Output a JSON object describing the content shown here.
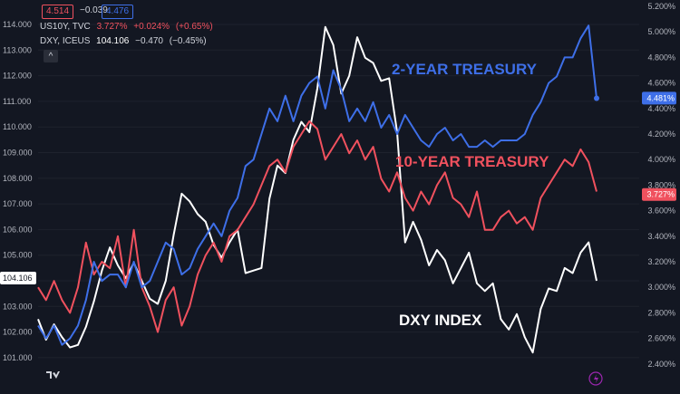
{
  "header": {
    "box1": "4.514",
    "change": "−0.039",
    "box2": "4.476",
    "row1": {
      "symbol": "US10Y, TVC",
      "value": "3.727%",
      "change": "+0.024%",
      "pct": "(+0.65%)"
    },
    "row2": {
      "symbol": "DXY, ICEUS",
      "value": "104.106",
      "change": "−0.470",
      "pct": "(−0.45%)"
    },
    "collapse": "^"
  },
  "colors": {
    "background": "#131722",
    "dxy": "#ffffff",
    "us10y": "#f0515e",
    "us02y": "#3e6fe8",
    "grid": "#1e222d",
    "text": "#b2b5be"
  },
  "chart_data": {
    "type": "line",
    "annotations": [
      "2-YEAR TREASURY",
      "10-YEAR TREASURY",
      "DXY INDEX"
    ],
    "left_axis": {
      "ticks": [
        "114.000",
        "113.000",
        "112.000",
        "111.000",
        "110.000",
        "109.000",
        "108.000",
        "107.000",
        "106.000",
        "105.000",
        "104.000",
        "103.000",
        "102.000",
        "101.000"
      ],
      "current": "104.106"
    },
    "right_axis": {
      "ticks": [
        "5.200%",
        "5.000%",
        "4.800%",
        "4.600%",
        "4.400%",
        "4.200%",
        "4.000%",
        "3.800%",
        "3.600%",
        "3.400%",
        "3.200%",
        "3.000%",
        "2.800%",
        "2.600%",
        "2.400%"
      ],
      "current_2y": "4.481%",
      "current_10y": "3.727%"
    },
    "series": [
      {
        "key": "dxy",
        "axis": "left",
        "values": [
          102.5,
          101.7,
          102.3,
          101.8,
          101.4,
          101.5,
          102.2,
          103.2,
          104.4,
          105.3,
          104.6,
          104.1,
          104.7,
          104.0,
          103.3,
          103.1,
          104.0,
          105.8,
          107.4,
          107.1,
          106.6,
          106.3,
          105.4,
          104.9,
          105.5,
          106.0,
          104.3,
          104.4,
          104.5,
          107.2,
          108.5,
          108.2,
          109.5,
          110.2,
          109.8,
          111.5,
          113.9,
          113.2,
          111.3,
          112.0,
          113.5,
          112.7,
          112.5,
          111.8,
          111.9,
          109.8,
          105.5,
          106.3,
          105.6,
          104.6,
          105.2,
          104.8,
          103.9,
          104.5,
          105.1,
          103.9,
          103.6,
          103.9,
          102.5,
          102.1,
          102.7,
          101.8,
          101.2,
          102.9,
          103.7,
          103.6,
          104.5,
          104.3,
          105.1,
          105.5,
          104.0
        ]
      },
      {
        "key": "us10y",
        "axis": "right",
        "values": [
          3.0,
          2.9,
          3.05,
          2.9,
          2.8,
          3.0,
          3.35,
          3.1,
          3.2,
          3.15,
          3.4,
          3.0,
          3.45,
          3.0,
          2.85,
          2.65,
          2.9,
          3.0,
          2.7,
          2.85,
          3.1,
          3.25,
          3.35,
          3.2,
          3.4,
          3.45,
          3.55,
          3.65,
          3.8,
          3.95,
          4.0,
          3.9,
          4.1,
          4.2,
          4.3,
          4.24,
          4.0,
          4.1,
          4.2,
          4.05,
          4.15,
          4.0,
          4.1,
          3.85,
          3.75,
          3.9,
          3.7,
          3.6,
          3.75,
          3.65,
          3.8,
          3.9,
          3.7,
          3.65,
          3.55,
          3.75,
          3.45,
          3.45,
          3.55,
          3.6,
          3.5,
          3.55,
          3.45,
          3.7,
          3.8,
          3.9,
          4.0,
          3.95,
          4.08,
          3.98,
          3.75
        ]
      },
      {
        "key": "us02y",
        "axis": "right",
        "values": [
          2.7,
          2.6,
          2.7,
          2.55,
          2.6,
          2.7,
          2.9,
          3.2,
          3.05,
          3.1,
          3.1,
          3.0,
          3.2,
          3.0,
          3.05,
          3.2,
          3.35,
          3.3,
          3.1,
          3.15,
          3.3,
          3.4,
          3.5,
          3.4,
          3.6,
          3.7,
          3.95,
          4.0,
          4.2,
          4.4,
          4.3,
          4.5,
          4.3,
          4.5,
          4.6,
          4.65,
          4.4,
          4.7,
          4.55,
          4.3,
          4.4,
          4.3,
          4.45,
          4.25,
          4.35,
          4.2,
          4.35,
          4.25,
          4.15,
          4.1,
          4.2,
          4.25,
          4.15,
          4.2,
          4.1,
          4.1,
          4.15,
          4.1,
          4.15,
          4.15,
          4.15,
          4.2,
          4.35,
          4.45,
          4.6,
          4.65,
          4.8,
          4.8,
          4.95,
          5.05,
          4.48
        ]
      }
    ]
  }
}
